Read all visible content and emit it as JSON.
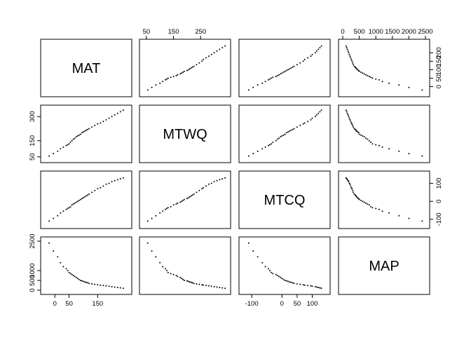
{
  "chart_data": {
    "type": "scatter-matrix",
    "title": "",
    "variables": [
      "MAT",
      "MTWQ",
      "MTCQ",
      "MAP"
    ],
    "ranges": {
      "MAT": [
        -35,
        255
      ],
      "MTWQ": [
        40,
        345
      ],
      "MTCQ": [
        -128,
        145
      ],
      "MAP": [
        0,
        2500
      ]
    },
    "ticks": {
      "MAT": [
        "0",
        "50",
        "150"
      ],
      "MTWQ": [
        "50",
        "150",
        "250"
      ],
      "MTCQ": [
        "-100",
        "0",
        "50",
        "100"
      ],
      "MAP": [
        "0",
        "500",
        "1500",
        "2500"
      ]
    },
    "axis_ticks": {
      "top": {
        "column_MTWQ": [
          "50",
          "150",
          "250"
        ],
        "column_MAP": [
          "0",
          "500",
          "1000",
          "1500",
          "2000",
          "2500"
        ]
      },
      "bottom": {
        "column_MAT": [
          "0",
          "50",
          "150"
        ],
        "column_MTCQ": [
          "-100",
          "0",
          "50",
          "100"
        ]
      },
      "left": {
        "row_MTWQ": [
          "50",
          "150",
          "300"
        ],
        "row_MAP": [
          "0",
          "500",
          "1000",
          "2500"
        ]
      },
      "right": {
        "row_MAT": [
          "0",
          "50",
          "100",
          "150",
          "200"
        ],
        "row_MTCQ": [
          "-100",
          "0",
          "100"
        ]
      }
    },
    "points": {
      "MAT": [
        -20,
        -5,
        10,
        20,
        30,
        40,
        45,
        50,
        55,
        60,
        65,
        70,
        75,
        80,
        85,
        90,
        95,
        100,
        105,
        110,
        115,
        120,
        130,
        140,
        150,
        160,
        170,
        180,
        190,
        200,
        210,
        220,
        230,
        240
      ],
      "MTWQ": [
        55,
        70,
        85,
        100,
        110,
        120,
        125,
        130,
        140,
        150,
        160,
        165,
        175,
        180,
        185,
        190,
        200,
        205,
        210,
        215,
        220,
        225,
        235,
        245,
        255,
        260,
        270,
        280,
        290,
        300,
        310,
        320,
        330,
        340
      ],
      "MTCQ": [
        -110,
        -95,
        -80,
        -65,
        -55,
        -45,
        -40,
        -35,
        -30,
        -20,
        -15,
        -10,
        -5,
        0,
        5,
        10,
        15,
        20,
        25,
        30,
        35,
        40,
        50,
        60,
        70,
        75,
        85,
        95,
        100,
        110,
        115,
        120,
        125,
        130
      ],
      "MAP": [
        2400,
        2000,
        1700,
        1400,
        1200,
        1100,
        1000,
        900,
        850,
        800,
        750,
        700,
        650,
        600,
        550,
        500,
        480,
        450,
        420,
        400,
        380,
        350,
        320,
        300,
        280,
        260,
        240,
        220,
        200,
        180,
        160,
        140,
        120,
        100
      ]
    }
  }
}
